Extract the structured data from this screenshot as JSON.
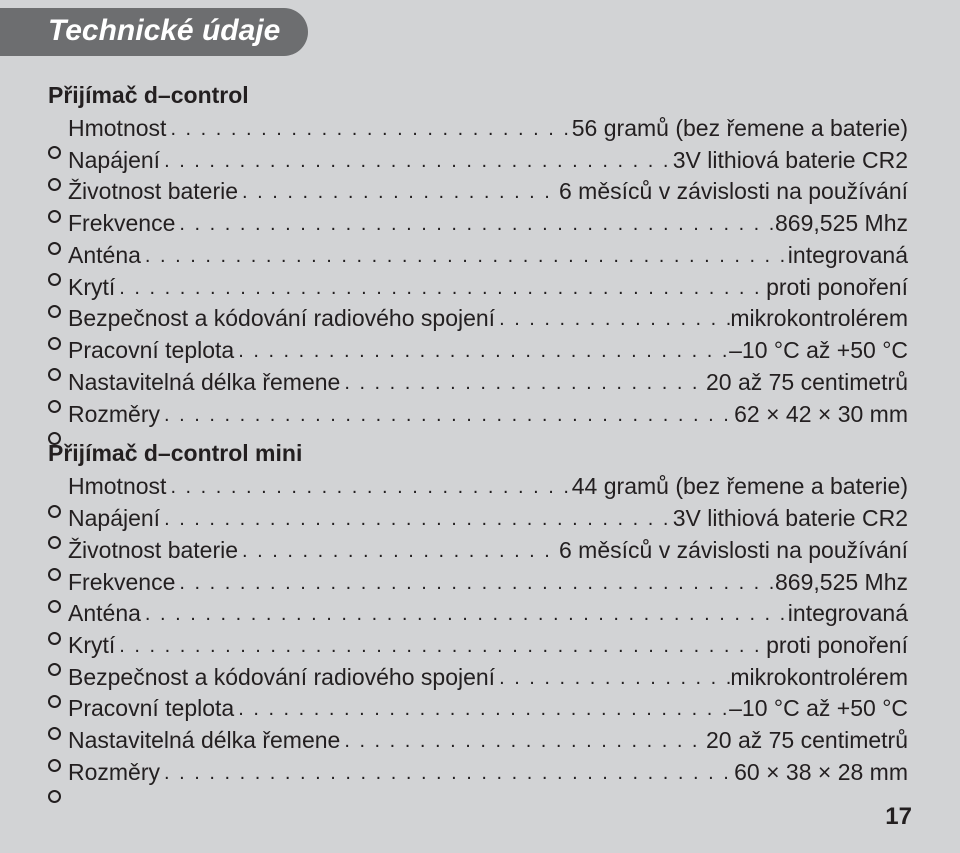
{
  "colors": {
    "page_bg": "#d2d3d5",
    "title_bg": "#6d6e70",
    "title_fg": "#ffffff",
    "text": "#231f20"
  },
  "typography": {
    "title_fontsize": 30,
    "heading_fontsize": 23,
    "body_fontsize": 23,
    "page_num_fontsize": 24
  },
  "title": "Technické údaje",
  "page_number": "17",
  "sections": [
    {
      "heading": "Přijímač d–control",
      "rows": [
        {
          "label": "Hmotnost",
          "value": "56 gramů (bez řemene a baterie)"
        },
        {
          "label": "Napájení",
          "value": "3V lithiová baterie CR2"
        },
        {
          "label": "Životnost baterie",
          "value": "6 měsíců v závislosti na používání"
        },
        {
          "label": "Frekvence",
          "value": "869,525 Mhz"
        },
        {
          "label": "Anténa",
          "value": "integrovaná"
        },
        {
          "label": "Krytí",
          "value": "proti ponoření"
        },
        {
          "label": "Bezpečnost a kódování radiového spojení",
          "value": "mikrokontrolérem"
        },
        {
          "label": "Pracovní teplota",
          "value": "–10 °C až +50 °C"
        },
        {
          "label": "Nastavitelná délka řemene",
          "value": "20 až 75 centimetrů"
        },
        {
          "label": "Rozměry",
          "value": "62 × 42 × 30 mm"
        }
      ]
    },
    {
      "heading": "Přijímač d–control mini",
      "rows": [
        {
          "label": "Hmotnost",
          "value": "44 gramů (bez řemene a baterie)"
        },
        {
          "label": "Napájení",
          "value": "3V lithiová baterie CR2"
        },
        {
          "label": "Životnost baterie",
          "value": "6 měsíců v závislosti na používání"
        },
        {
          "label": "Frekvence",
          "value": "869,525 Mhz"
        },
        {
          "label": "Anténa",
          "value": "integrovaná"
        },
        {
          "label": "Krytí",
          "value": "proti ponoření"
        },
        {
          "label": "Bezpečnost a kódování radiového spojení",
          "value": "mikrokontrolérem"
        },
        {
          "label": "Pracovní teplota",
          "value": "–10 °C až +50 °C"
        },
        {
          "label": "Nastavitelná délka řemene",
          "value": "20 až 75 centimetrů"
        },
        {
          "label": "Rozměry",
          "value": "60 × 38 × 28 mm"
        }
      ]
    }
  ]
}
